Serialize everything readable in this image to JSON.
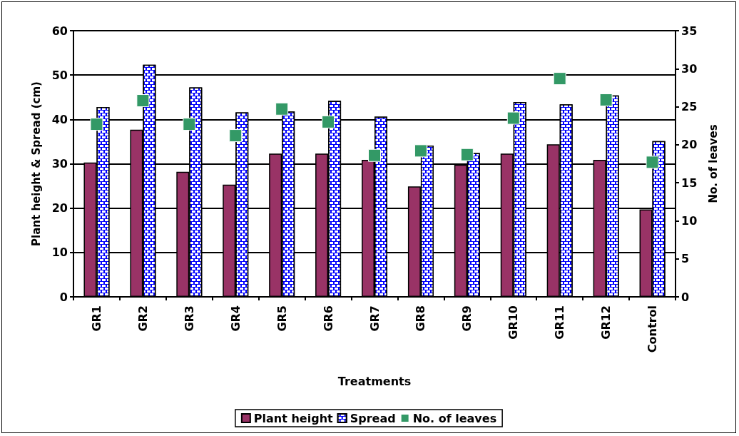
{
  "chart_data": {
    "type": "bar",
    "xlabel": "Treatments",
    "ylabel": "Plant height & Spread (cm)",
    "y2label": "No. of leaves",
    "categories": [
      "GR1",
      "GR2",
      "GR3",
      "GR4",
      "GR5",
      "GR6",
      "GR7",
      "GR8",
      "GR9",
      "GR10",
      "GR11",
      "GR12",
      "Control"
    ],
    "series": [
      {
        "name": "Plant height",
        "color": "#993366",
        "values": [
          30.3,
          37.7,
          28.2,
          25.3,
          32.3,
          32.3,
          30.9,
          24.9,
          29.8,
          32.3,
          34.4,
          30.9,
          19.7
        ]
      },
      {
        "name": "Spread",
        "color": "#0000ff",
        "values": [
          42.8,
          52.3,
          47.2,
          41.6,
          41.8,
          44.2,
          40.6,
          34.1,
          32.4,
          43.9,
          43.4,
          45.4,
          35.1
        ]
      },
      {
        "name": "No. of leaves",
        "type": "scatter",
        "axis": "y2",
        "color": "#339966",
        "values": [
          22.7,
          25.8,
          22.7,
          21.2,
          24.7,
          23.0,
          18.6,
          19.2,
          18.7,
          23.5,
          28.7,
          25.9,
          17.7
        ]
      }
    ],
    "ylim": [
      0,
      60
    ],
    "yticks": [
      0,
      10,
      20,
      30,
      40,
      50,
      60
    ],
    "y2lim": [
      0,
      35
    ],
    "y2ticks": [
      0,
      5,
      10,
      15,
      20,
      25,
      30,
      35
    ],
    "grid": "y",
    "legend": "bottom",
    "marker": "square"
  }
}
